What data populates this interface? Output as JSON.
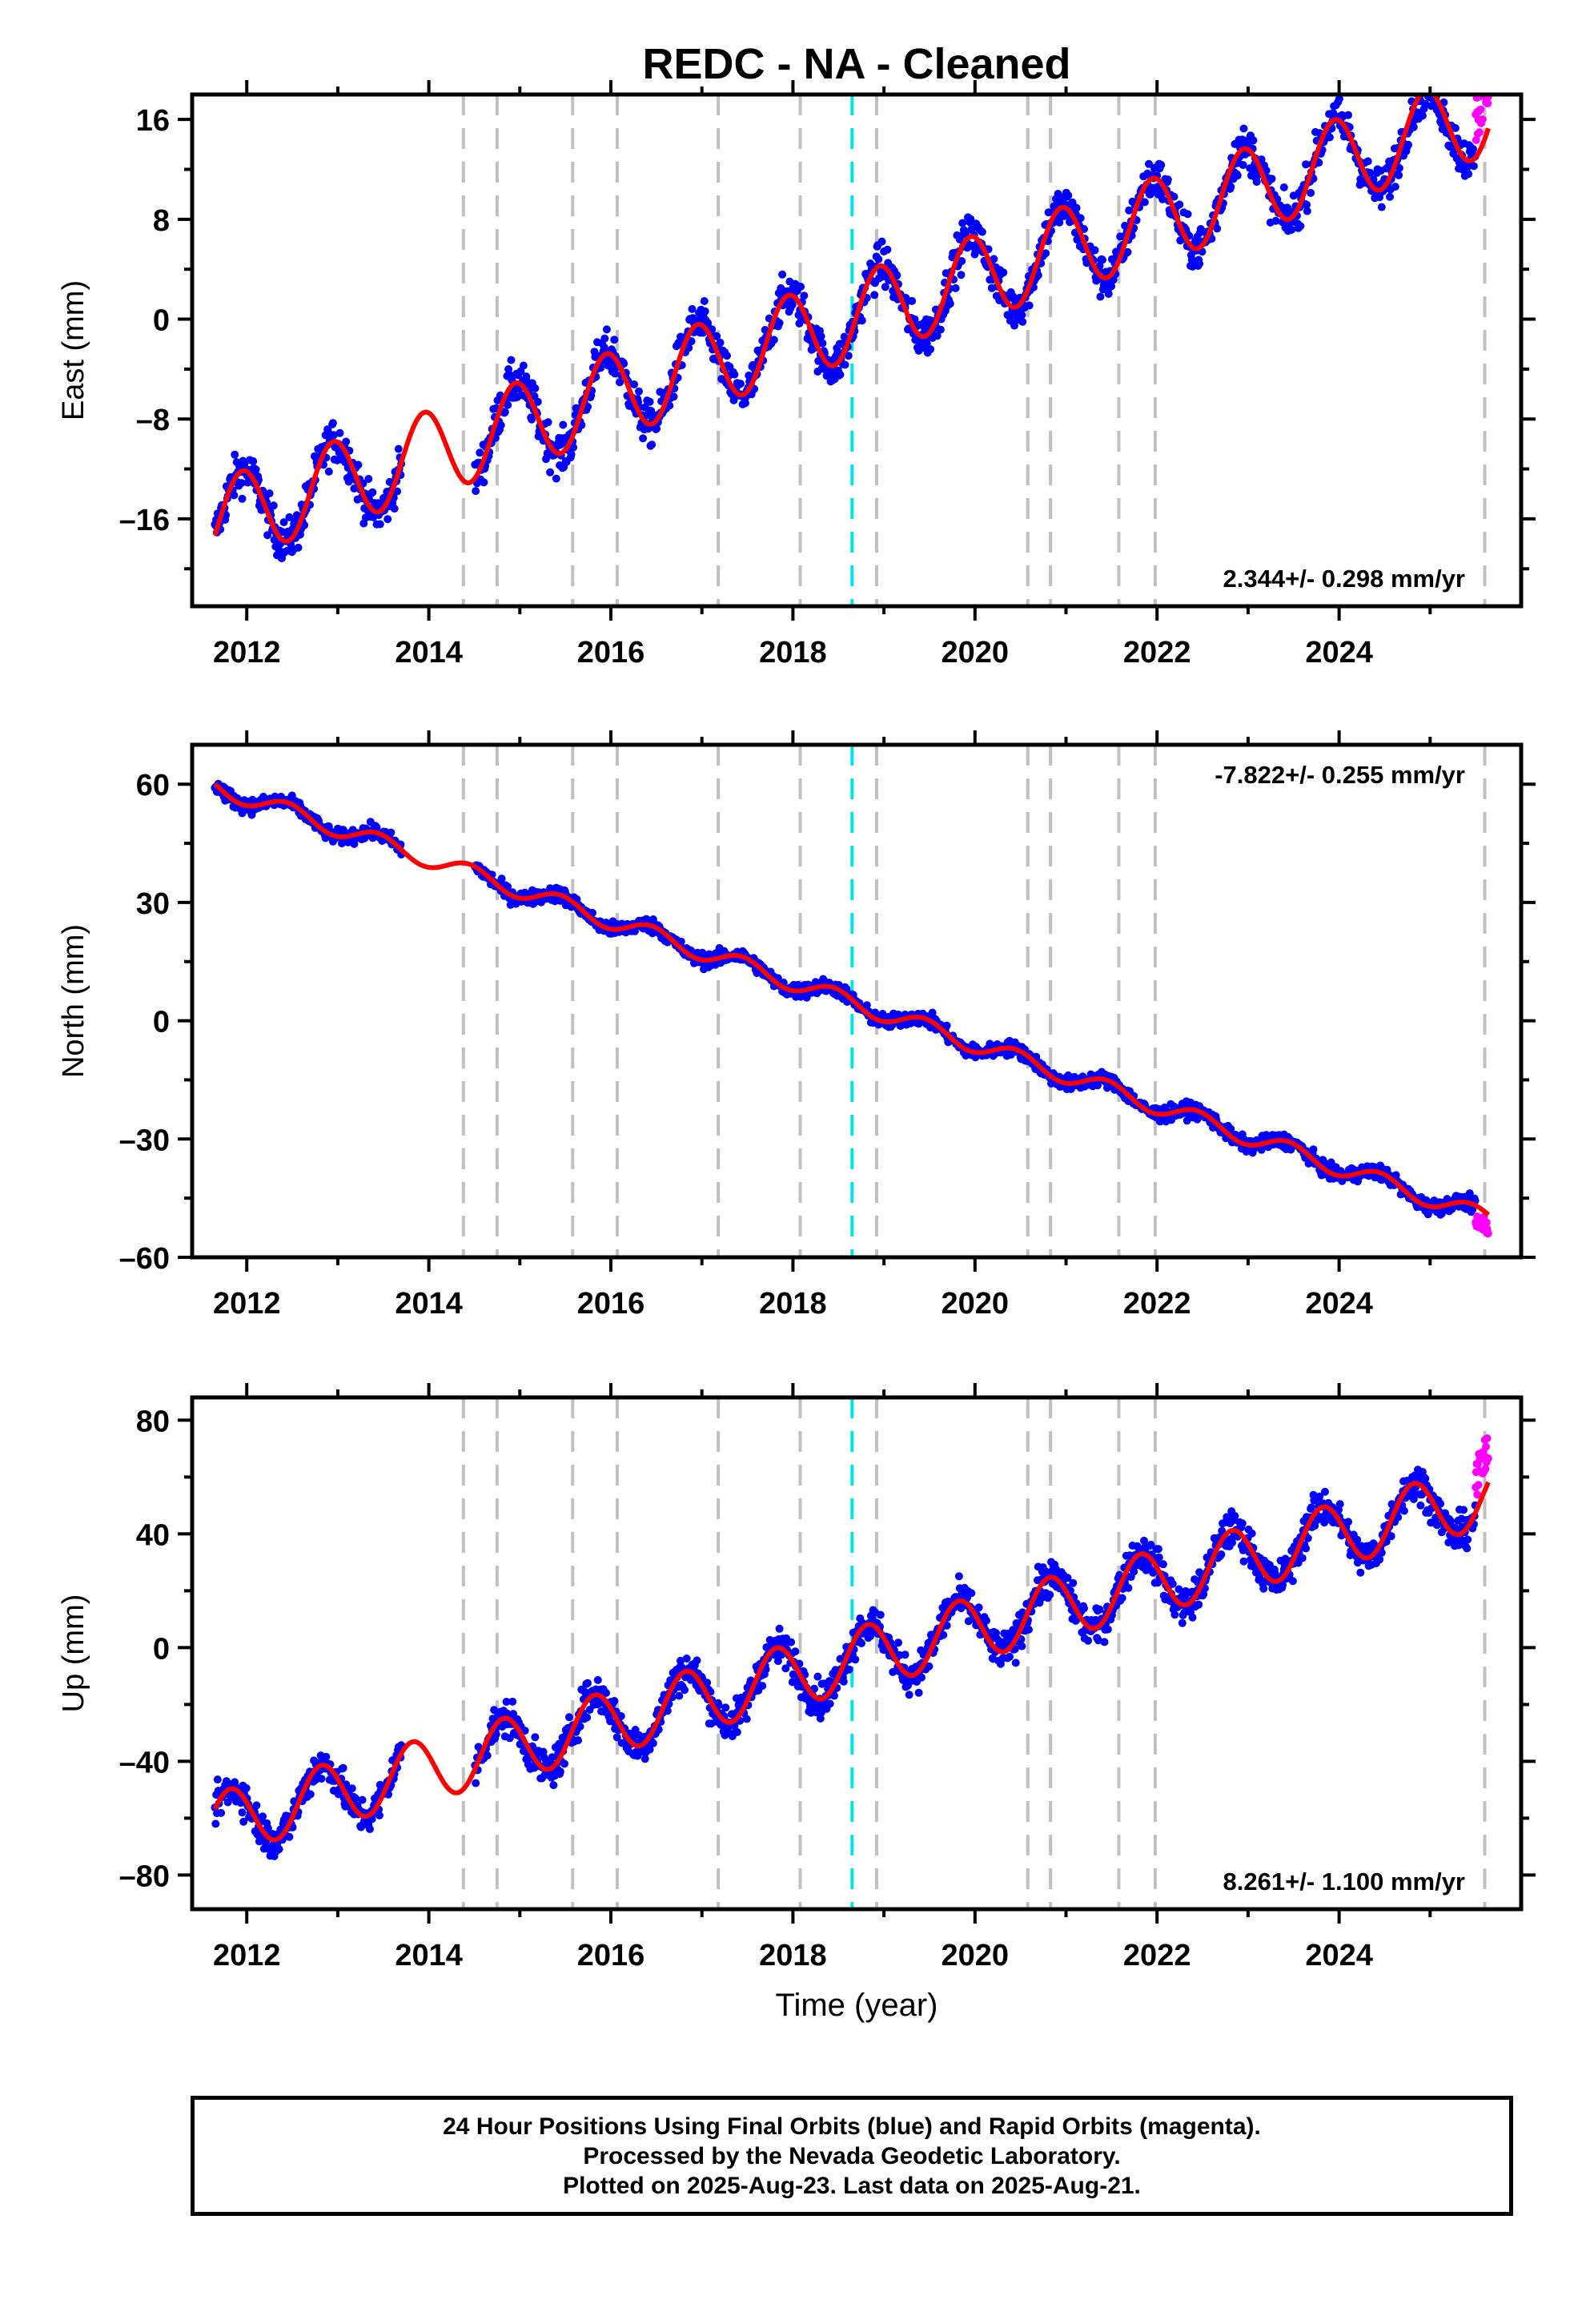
{
  "title": "REDC  - NA - Cleaned",
  "colors": {
    "final_orbits": "#0000ff",
    "rapid_orbits": "#ff00ff",
    "model": "#ff0000",
    "event_lines": "#c0c0c0",
    "special_event_line": "#00e5e5"
  },
  "x_axis": {
    "label": "Time (year)",
    "range": [
      2011.4,
      2026.0
    ],
    "ticks": [
      2012,
      2014,
      2016,
      2018,
      2020,
      2022,
      2024
    ],
    "tick_labels": [
      "2012",
      "2014",
      "2016",
      "2018",
      "2020",
      "2022",
      "2024"
    ]
  },
  "event_lines": [
    2014.38,
    2014.75,
    2015.58,
    2016.07,
    2017.18,
    2018.08,
    2018.92,
    2020.58,
    2020.83,
    2021.58,
    2021.98,
    2025.6
  ],
  "special_event_line": 2018.65,
  "footer_lines": [
    "24 Hour Positions Using Final Orbits (blue) and Rapid Orbits (magenta).",
    "Processed by the Nevada Geodetic Laboratory.",
    "Plotted on 2025-Aug-23. Last data on 2025-Aug-21."
  ],
  "chart_data": [
    {
      "type": "scatter",
      "component": "East",
      "ylabel": "East (mm)",
      "ylim": [
        -23,
        18
      ],
      "yticks": [
        -16,
        -8,
        0,
        8,
        16
      ],
      "ytick_labels": [
        "–16",
        "–8",
        "0",
        "8",
        "16"
      ],
      "rate_label": "2.344+/- 0.298 mm/yr",
      "rate_position": "bottom-right",
      "model": {
        "trend_mm_per_yr": 2.344,
        "offset_mm_at_2018_5": -0.2,
        "seasonal_amplitude_mm": 3.4,
        "seasonal_peak_doy_fraction": 0.95
      },
      "series": [
        {
          "name": "Final Orbits",
          "x_range": [
            2011.65,
            2025.5
          ],
          "scatter_mm": 1.2
        },
        {
          "name": "Rapid Orbits",
          "x_range": [
            2025.5,
            2025.64
          ]
        }
      ],
      "data_gap": [
        2013.7,
        2014.5
      ]
    },
    {
      "type": "scatter",
      "component": "North",
      "ylabel": "North (mm)",
      "ylim": [
        -60,
        70
      ],
      "yticks": [
        -60,
        -30,
        0,
        30,
        60
      ],
      "ytick_labels": [
        "–60",
        "–30",
        "0",
        "30",
        "60"
      ],
      "rate_label": "-7.822+/- 0.255 mm/yr",
      "rate_position": "top-right",
      "model": {
        "trend_mm_per_yr": -7.822,
        "offset_mm_at_2018_5": 5.8,
        "seasonal_amplitude_mm": 2.2,
        "seasonal_peak_doy_fraction": 0.45
      },
      "series": [
        {
          "name": "Final Orbits",
          "x_range": [
            2011.65,
            2025.5
          ],
          "scatter_mm": 1.3
        },
        {
          "name": "Rapid Orbits",
          "x_range": [
            2025.5,
            2025.64
          ]
        }
      ],
      "data_gap": [
        2013.7,
        2014.5
      ]
    },
    {
      "type": "scatter",
      "component": "Up",
      "ylabel": "Up (mm)",
      "ylim": [
        -92,
        88
      ],
      "yticks": [
        -80,
        -40,
        0,
        40,
        80
      ],
      "ytick_labels": [
        "–80",
        "–40",
        "0",
        "40",
        "80"
      ],
      "rate_label": "8.261+/- 1.100 mm/yr",
      "rate_position": "bottom-right",
      "model": {
        "trend_mm_per_yr": 8.261,
        "offset_mm_at_2018_5": -5.5,
        "seasonal_amplitude_mm": 11,
        "seasonal_peak_doy_fraction": 0.82
      },
      "series": [
        {
          "name": "Final Orbits",
          "x_range": [
            2011.65,
            2025.5
          ],
          "scatter_mm": 4.5
        },
        {
          "name": "Rapid Orbits",
          "x_range": [
            2025.5,
            2025.64
          ]
        }
      ],
      "data_gap": [
        2013.7,
        2014.5
      ]
    }
  ]
}
